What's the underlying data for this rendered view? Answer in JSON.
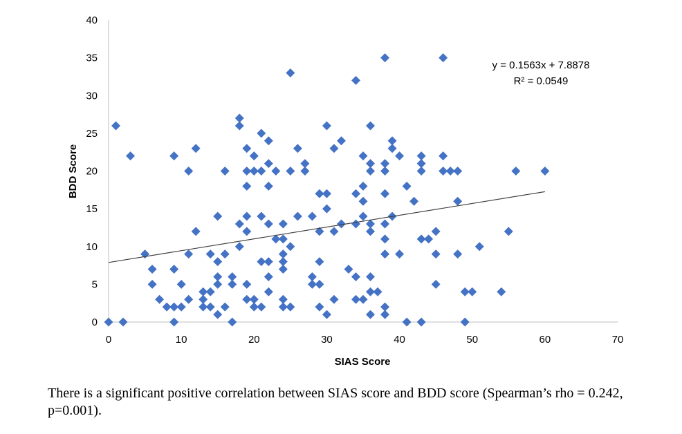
{
  "chart_data": {
    "type": "scatter",
    "title": "",
    "xlabel": "SIAS Score",
    "ylabel": "BDD Score",
    "xlim": [
      0,
      70
    ],
    "ylim": [
      0,
      40
    ],
    "xticks": [
      0,
      10,
      20,
      30,
      40,
      50,
      60,
      70
    ],
    "yticks": [
      0,
      5,
      10,
      15,
      20,
      25,
      30,
      35,
      40
    ],
    "marker": "diamond",
    "marker_color": "#4472C4",
    "trendline_color": "#404040",
    "trendline": {
      "slope": 0.1563,
      "intercept": 7.8878,
      "x_range": [
        0,
        60
      ],
      "equation_label": "y = 0.1563x + 7.8878",
      "r2_label": "R² = 0.0549"
    },
    "points": [
      [
        0,
        0
      ],
      [
        1,
        26
      ],
      [
        2,
        0
      ],
      [
        3,
        22
      ],
      [
        5,
        9
      ],
      [
        6,
        7
      ],
      [
        6,
        5
      ],
      [
        7,
        3
      ],
      [
        8,
        2
      ],
      [
        9,
        22
      ],
      [
        9,
        7
      ],
      [
        9,
        2
      ],
      [
        9,
        0
      ],
      [
        10,
        5
      ],
      [
        10,
        2
      ],
      [
        11,
        20
      ],
      [
        11,
        9
      ],
      [
        11,
        3
      ],
      [
        12,
        23
      ],
      [
        12,
        12
      ],
      [
        13,
        4
      ],
      [
        13,
        3
      ],
      [
        13,
        2
      ],
      [
        14,
        9
      ],
      [
        14,
        4
      ],
      [
        14,
        2
      ],
      [
        15,
        14
      ],
      [
        15,
        8
      ],
      [
        15,
        6
      ],
      [
        15,
        5
      ],
      [
        15,
        1
      ],
      [
        16,
        20
      ],
      [
        16,
        9
      ],
      [
        16,
        2
      ],
      [
        17,
        6
      ],
      [
        17,
        5
      ],
      [
        17,
        0
      ],
      [
        18,
        27
      ],
      [
        18,
        26
      ],
      [
        18,
        13
      ],
      [
        18,
        10
      ],
      [
        19,
        23
      ],
      [
        19,
        20
      ],
      [
        19,
        18
      ],
      [
        19,
        14
      ],
      [
        19,
        12
      ],
      [
        19,
        5
      ],
      [
        19,
        3
      ],
      [
        20,
        22
      ],
      [
        20,
        20
      ],
      [
        20,
        3
      ],
      [
        20,
        2
      ],
      [
        21,
        25
      ],
      [
        21,
        20
      ],
      [
        21,
        14
      ],
      [
        21,
        8
      ],
      [
        21,
        2
      ],
      [
        22,
        24
      ],
      [
        22,
        21
      ],
      [
        22,
        18
      ],
      [
        22,
        13
      ],
      [
        22,
        8
      ],
      [
        22,
        6
      ],
      [
        22,
        4
      ],
      [
        23,
        20
      ],
      [
        23,
        11
      ],
      [
        24,
        13
      ],
      [
        24,
        11
      ],
      [
        24,
        9
      ],
      [
        24,
        8
      ],
      [
        24,
        7
      ],
      [
        24,
        3
      ],
      [
        24,
        2
      ],
      [
        25,
        33
      ],
      [
        25,
        20
      ],
      [
        25,
        10
      ],
      [
        25,
        2
      ],
      [
        26,
        23
      ],
      [
        26,
        14
      ],
      [
        27,
        21
      ],
      [
        27,
        20
      ],
      [
        28,
        14
      ],
      [
        28,
        6
      ],
      [
        28,
        5
      ],
      [
        29,
        17
      ],
      [
        29,
        12
      ],
      [
        29,
        8
      ],
      [
        29,
        5
      ],
      [
        29,
        2
      ],
      [
        30,
        26
      ],
      [
        30,
        17
      ],
      [
        30,
        15
      ],
      [
        30,
        1
      ],
      [
        31,
        23
      ],
      [
        31,
        12
      ],
      [
        31,
        3
      ],
      [
        32,
        24
      ],
      [
        32,
        13
      ],
      [
        33,
        7
      ],
      [
        34,
        32
      ],
      [
        34,
        17
      ],
      [
        34,
        13
      ],
      [
        34,
        6
      ],
      [
        34,
        3
      ],
      [
        35,
        22
      ],
      [
        35,
        18
      ],
      [
        35,
        16
      ],
      [
        35,
        14
      ],
      [
        35,
        3
      ],
      [
        36,
        26
      ],
      [
        36,
        21
      ],
      [
        36,
        20
      ],
      [
        36,
        13
      ],
      [
        36,
        12
      ],
      [
        36,
        6
      ],
      [
        36,
        4
      ],
      [
        36,
        1
      ],
      [
        37,
        4
      ],
      [
        38,
        35
      ],
      [
        38,
        21
      ],
      [
        38,
        20
      ],
      [
        38,
        17
      ],
      [
        38,
        13
      ],
      [
        38,
        11
      ],
      [
        38,
        9
      ],
      [
        38,
        2
      ],
      [
        38,
        1
      ],
      [
        39,
        24
      ],
      [
        39,
        23
      ],
      [
        39,
        14
      ],
      [
        40,
        22
      ],
      [
        40,
        9
      ],
      [
        41,
        18
      ],
      [
        41,
        0
      ],
      [
        42,
        16
      ],
      [
        43,
        22
      ],
      [
        43,
        21
      ],
      [
        43,
        20
      ],
      [
        43,
        11
      ],
      [
        43,
        0
      ],
      [
        44,
        11
      ],
      [
        45,
        12
      ],
      [
        45,
        9
      ],
      [
        45,
        5
      ],
      [
        46,
        35
      ],
      [
        46,
        22
      ],
      [
        46,
        20
      ],
      [
        47,
        20
      ],
      [
        48,
        20
      ],
      [
        48,
        16
      ],
      [
        48,
        9
      ],
      [
        49,
        4
      ],
      [
        49,
        0
      ],
      [
        50,
        4
      ],
      [
        51,
        10
      ],
      [
        54,
        4
      ],
      [
        55,
        12
      ],
      [
        56,
        20
      ],
      [
        60,
        20
      ]
    ]
  },
  "caption": "There is a significant positive correlation between SIAS score and BDD score (Spearman’s rho = 0.242, p=0.001)."
}
